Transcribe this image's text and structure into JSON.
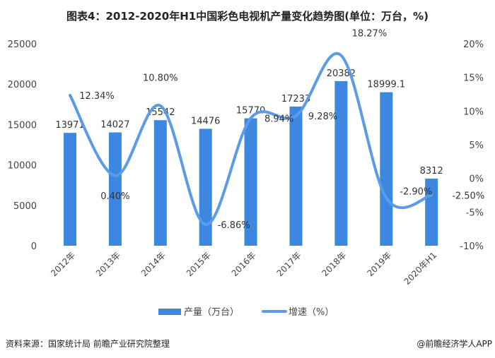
{
  "title": "图表4：2012-2020年H1中国彩色电视机产量变化趋势图(单位：万台，%)",
  "source": "资料来源：国家统计局 前瞻产业研究院整理",
  "brand": "@前瞻经济学人APP",
  "watermark": "前瞻产业研究院",
  "chart_data": {
    "type": "bar+line",
    "categories": [
      "2012年",
      "2013年",
      "2014年",
      "2015年",
      "2016年",
      "2017年",
      "2018年",
      "2019年",
      "2020年H1"
    ],
    "series": [
      {
        "name": "产量（万台）",
        "type": "bar",
        "axis": "left",
        "values": [
          13971,
          14027,
          15542,
          14476,
          15770,
          17233,
          20382,
          18999.1,
          8312
        ],
        "labels": [
          "13971",
          "14027",
          "15542",
          "14476",
          "15770",
          "17233",
          "20382",
          "18999.1",
          "8312"
        ],
        "color": "#3c87e0"
      },
      {
        "name": "增速（%）",
        "type": "line",
        "axis": "right",
        "values": [
          12.34,
          0.4,
          10.8,
          -6.86,
          8.94,
          9.28,
          18.27,
          -2.9,
          -2.5
        ],
        "labels": [
          "12.34%",
          "0.40%",
          "10.80%",
          "-6.86%",
          "8.94%",
          "9.28%",
          "18.27%",
          "-2.90%",
          "-2.50%"
        ],
        "color": "#5b9be8"
      }
    ],
    "yleft": {
      "lim": [
        0,
        25000
      ],
      "ticks": [
        "0",
        "5000",
        "10000",
        "15000",
        "20000",
        "25000"
      ]
    },
    "yright": {
      "lim": [
        -10,
        20
      ],
      "ticks": [
        "-10%",
        "-5%",
        "0%",
        "5%",
        "10%",
        "15%",
        "20%"
      ]
    },
    "grid": false,
    "legend": "bottom"
  }
}
